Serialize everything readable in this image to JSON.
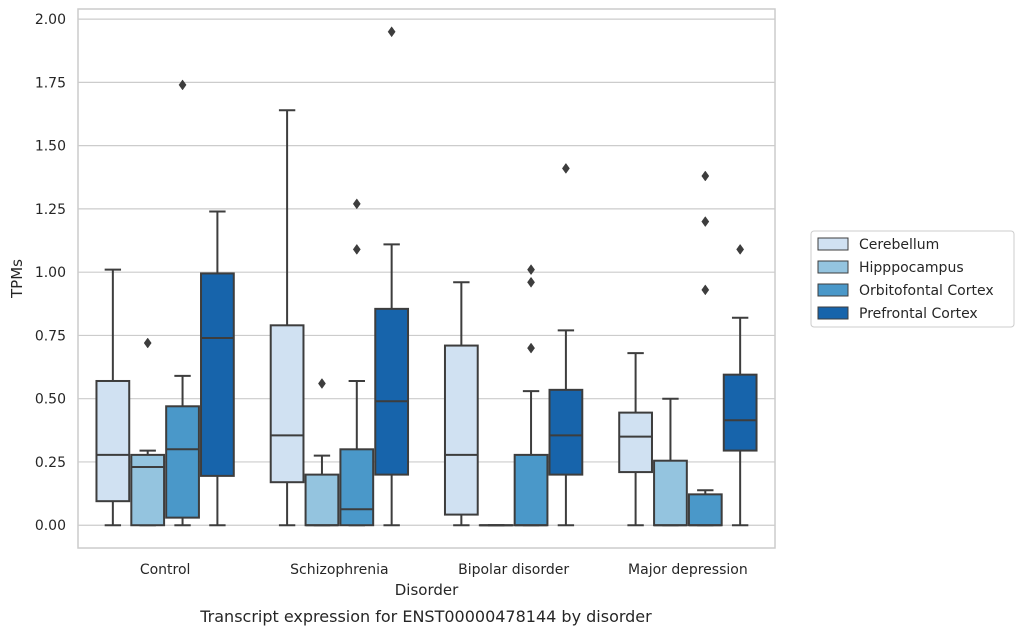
{
  "chart_data": {
    "type": "box",
    "caption": "Transcript expression for ENST00000478144 by disorder",
    "xlabel": "Disorder",
    "ylabel": "TPMs",
    "ylim": [
      -0.09,
      2.04
    ],
    "yticks": [
      0.0,
      0.25,
      0.5,
      0.75,
      1.0,
      1.25,
      1.5,
      1.75,
      2.0
    ],
    "ytick_labels": [
      "0.00",
      "0.25",
      "0.50",
      "0.75",
      "1.00",
      "1.25",
      "1.50",
      "1.75",
      "2.00"
    ],
    "grid": true,
    "legend_position": "right",
    "categories": [
      "Control",
      "Schizophrenia",
      "Bipolar disorder",
      "Major depression"
    ],
    "series": [
      {
        "name": "Cerebellum",
        "color": "#d0e1f2",
        "boxes": [
          {
            "whislo": 0.0,
            "q1": 0.095,
            "med": 0.278,
            "q3": 0.57,
            "whishi": 1.01,
            "fliers": []
          },
          {
            "whislo": 0.0,
            "q1": 0.17,
            "med": 0.355,
            "q3": 0.79,
            "whishi": 1.64,
            "fliers": []
          },
          {
            "whislo": 0.0,
            "q1": 0.042,
            "med": 0.278,
            "q3": 0.71,
            "whishi": 0.96,
            "fliers": []
          },
          {
            "whislo": 0.0,
            "q1": 0.21,
            "med": 0.35,
            "q3": 0.445,
            "whishi": 0.68,
            "fliers": []
          }
        ]
      },
      {
        "name": "Hipppocampus",
        "color": "#94c4df",
        "boxes": [
          {
            "whislo": 0.0,
            "q1": 0.0,
            "med": 0.23,
            "q3": 0.278,
            "whishi": 0.295,
            "fliers": [
              0.72
            ]
          },
          {
            "whislo": 0.0,
            "q1": 0.0,
            "med": 0.0,
            "q3": 0.2,
            "whishi": 0.275,
            "fliers": [
              0.56
            ]
          },
          {
            "whislo": 0.0,
            "q1": 0.0,
            "med": 0.0,
            "q3": 0.0,
            "whishi": 0.0,
            "fliers": []
          },
          {
            "whislo": 0.0,
            "q1": 0.0,
            "med": 0.0,
            "q3": 0.255,
            "whishi": 0.5,
            "fliers": []
          }
        ]
      },
      {
        "name": "Orbitofontal Cortex",
        "color": "#4a98c9",
        "boxes": [
          {
            "whislo": 0.0,
            "q1": 0.03,
            "med": 0.3,
            "q3": 0.47,
            "whishi": 0.59,
            "fliers": [
              1.74
            ]
          },
          {
            "whislo": 0.0,
            "q1": 0.0,
            "med": 0.063,
            "q3": 0.3,
            "whishi": 0.57,
            "fliers": [
              1.09,
              1.27
            ]
          },
          {
            "whislo": 0.0,
            "q1": 0.0,
            "med": 0.0,
            "q3": 0.278,
            "whishi": 0.53,
            "fliers": [
              0.96,
              1.01,
              0.7
            ]
          },
          {
            "whislo": 0.0,
            "q1": 0.0,
            "med": 0.0,
            "q3": 0.122,
            "whishi": 0.138,
            "fliers": [
              0.93,
              1.2,
              1.38
            ]
          }
        ]
      },
      {
        "name": "Prefrontal Cortex",
        "color": "#1764ab",
        "boxes": [
          {
            "whislo": 0.0,
            "q1": 0.195,
            "med": 0.74,
            "q3": 0.995,
            "whishi": 1.24,
            "fliers": []
          },
          {
            "whislo": 0.0,
            "q1": 0.2,
            "med": 0.49,
            "q3": 0.855,
            "whishi": 1.11,
            "fliers": [
              1.95
            ]
          },
          {
            "whislo": 0.0,
            "q1": 0.2,
            "med": 0.355,
            "q3": 0.535,
            "whishi": 0.77,
            "fliers": [
              1.41
            ]
          },
          {
            "whislo": 0.0,
            "q1": 0.295,
            "med": 0.415,
            "q3": 0.595,
            "whishi": 0.82,
            "fliers": [
              1.09
            ]
          }
        ]
      }
    ]
  }
}
